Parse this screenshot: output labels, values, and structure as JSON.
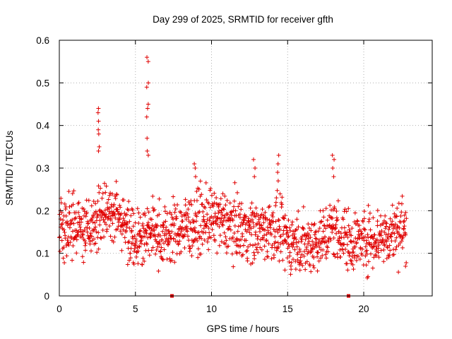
{
  "chart_data": {
    "type": "scatter",
    "title": "Day 299 of 2025, SRMTID for receiver gfth",
    "xlabel": "GPS time / hours",
    "ylabel": "SRMTID / TECUs",
    "xlim": [
      0,
      24.5
    ],
    "ylim": [
      0,
      0.6
    ],
    "xticks": [
      0,
      5,
      10,
      15,
      20
    ],
    "yticks": [
      0,
      0.1,
      0.2,
      0.3,
      0.4,
      0.5,
      0.6
    ],
    "xtick_labels": [
      "0",
      "5",
      "10",
      "15",
      "20"
    ],
    "ytick_labels": [
      "0",
      "0.1",
      "0.2",
      "0.3",
      "0.4",
      "0.5",
      "0.6"
    ],
    "grid": true,
    "marker": "+",
    "color": "#e00000",
    "series": [
      {
        "name": "SRMTID",
        "x_range": [
          0.0,
          22.8
        ],
        "baseline_profile": [
          {
            "x": 0.0,
            "y": 0.17
          },
          {
            "x": 1.0,
            "y": 0.16
          },
          {
            "x": 2.0,
            "y": 0.15
          },
          {
            "x": 3.0,
            "y": 0.21
          },
          {
            "x": 4.0,
            "y": 0.18
          },
          {
            "x": 5.0,
            "y": 0.14
          },
          {
            "x": 6.0,
            "y": 0.15
          },
          {
            "x": 7.0,
            "y": 0.14
          },
          {
            "x": 8.0,
            "y": 0.16
          },
          {
            "x": 9.0,
            "y": 0.17
          },
          {
            "x": 10.0,
            "y": 0.18
          },
          {
            "x": 11.0,
            "y": 0.17
          },
          {
            "x": 12.0,
            "y": 0.16
          },
          {
            "x": 13.0,
            "y": 0.15
          },
          {
            "x": 14.0,
            "y": 0.16
          },
          {
            "x": 15.0,
            "y": 0.13
          },
          {
            "x": 16.0,
            "y": 0.12
          },
          {
            "x": 17.0,
            "y": 0.13
          },
          {
            "x": 18.0,
            "y": 0.16
          },
          {
            "x": 19.0,
            "y": 0.13
          },
          {
            "x": 20.0,
            "y": 0.13
          },
          {
            "x": 21.0,
            "y": 0.14
          },
          {
            "x": 22.0,
            "y": 0.15
          },
          {
            "x": 22.8,
            "y": 0.16
          }
        ],
        "spikes": [
          {
            "x": 2.6,
            "values": [
              0.44,
              0.43,
              0.41,
              0.39,
              0.38,
              0.35,
              0.34
            ]
          },
          {
            "x": 5.8,
            "values": [
              0.56,
              0.55,
              0.5,
              0.49,
              0.45,
              0.44,
              0.42,
              0.37,
              0.34,
              0.33
            ]
          },
          {
            "x": 14.4,
            "values": [
              0.33,
              0.31,
              0.29,
              0.27
            ]
          },
          {
            "x": 18.0,
            "values": [
              0.33,
              0.32,
              0.3,
              0.28
            ]
          },
          {
            "x": 12.8,
            "values": [
              0.32,
              0.3,
              0.28
            ]
          },
          {
            "x": 8.9,
            "values": [
              0.31,
              0.3,
              0.28
            ]
          }
        ],
        "zero_markers": [
          {
            "x": 7.4,
            "y": 0
          },
          {
            "x": 19.0,
            "y": 0
          }
        ]
      }
    ]
  }
}
